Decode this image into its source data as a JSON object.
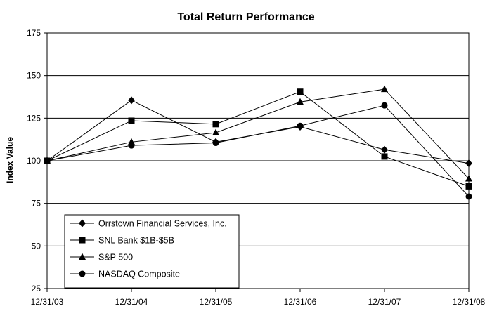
{
  "chart_data": {
    "type": "line",
    "title": "Total Return Performance",
    "xlabel": "",
    "ylabel": "Index Value",
    "categories": [
      "12/31/03",
      "12/31/04",
      "12/31/05",
      "12/31/06",
      "12/31/07",
      "12/31/08"
    ],
    "ylim": [
      25,
      175
    ],
    "yticks": [
      25,
      50,
      75,
      100,
      125,
      150,
      175
    ],
    "grid": "horizontal",
    "legend": "bottom-left",
    "series": [
      {
        "name": "Orrstown Financial Services, Inc.",
        "marker": "diamond",
        "values": [
          100,
          135.5,
          111,
          120,
          106.5,
          98.5
        ]
      },
      {
        "name": "SNL Bank $1B-$5B",
        "marker": "square",
        "values": [
          100,
          123.5,
          121.5,
          140.5,
          102.5,
          85
        ]
      },
      {
        "name": "S&P 500",
        "marker": "triangle",
        "values": [
          100,
          111,
          116.5,
          134.5,
          142,
          89.5
        ]
      },
      {
        "name": "NASDAQ Composite",
        "marker": "circle",
        "values": [
          100,
          109,
          110.5,
          120.5,
          132.5,
          79
        ]
      }
    ]
  }
}
